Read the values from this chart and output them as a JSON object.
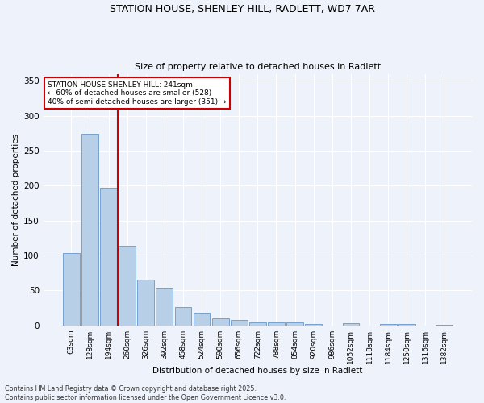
{
  "title1": "STATION HOUSE, SHENLEY HILL, RADLETT, WD7 7AR",
  "title2": "Size of property relative to detached houses in Radlett",
  "xlabel": "Distribution of detached houses by size in Radlett",
  "ylabel": "Number of detached properties",
  "bar_labels": [
    "63sqm",
    "128sqm",
    "194sqm",
    "260sqm",
    "326sqm",
    "392sqm",
    "458sqm",
    "524sqm",
    "590sqm",
    "656sqm",
    "722sqm",
    "788sqm",
    "854sqm",
    "920sqm",
    "986sqm",
    "1052sqm",
    "1118sqm",
    "1184sqm",
    "1250sqm",
    "1316sqm",
    "1382sqm"
  ],
  "bar_values": [
    103,
    274,
    197,
    114,
    65,
    54,
    26,
    18,
    10,
    8,
    4,
    4,
    5,
    2,
    0,
    3,
    0,
    2,
    2,
    0,
    1
  ],
  "bar_color": "#b8cfe8",
  "bar_edge_color": "#6898c8",
  "vline_color": "#cc0000",
  "annotation_text": "STATION HOUSE SHENLEY HILL: 241sqm\n← 60% of detached houses are smaller (528)\n40% of semi-detached houses are larger (351) →",
  "annotation_box_color": "#ffffff",
  "annotation_box_edge": "#cc0000",
  "ylim": [
    0,
    360
  ],
  "yticks": [
    0,
    50,
    100,
    150,
    200,
    250,
    300,
    350
  ],
  "background_color": "#eef2fa",
  "grid_color": "#ffffff",
  "footnote": "Contains HM Land Registry data © Crown copyright and database right 2025.\nContains public sector information licensed under the Open Government Licence v3.0."
}
